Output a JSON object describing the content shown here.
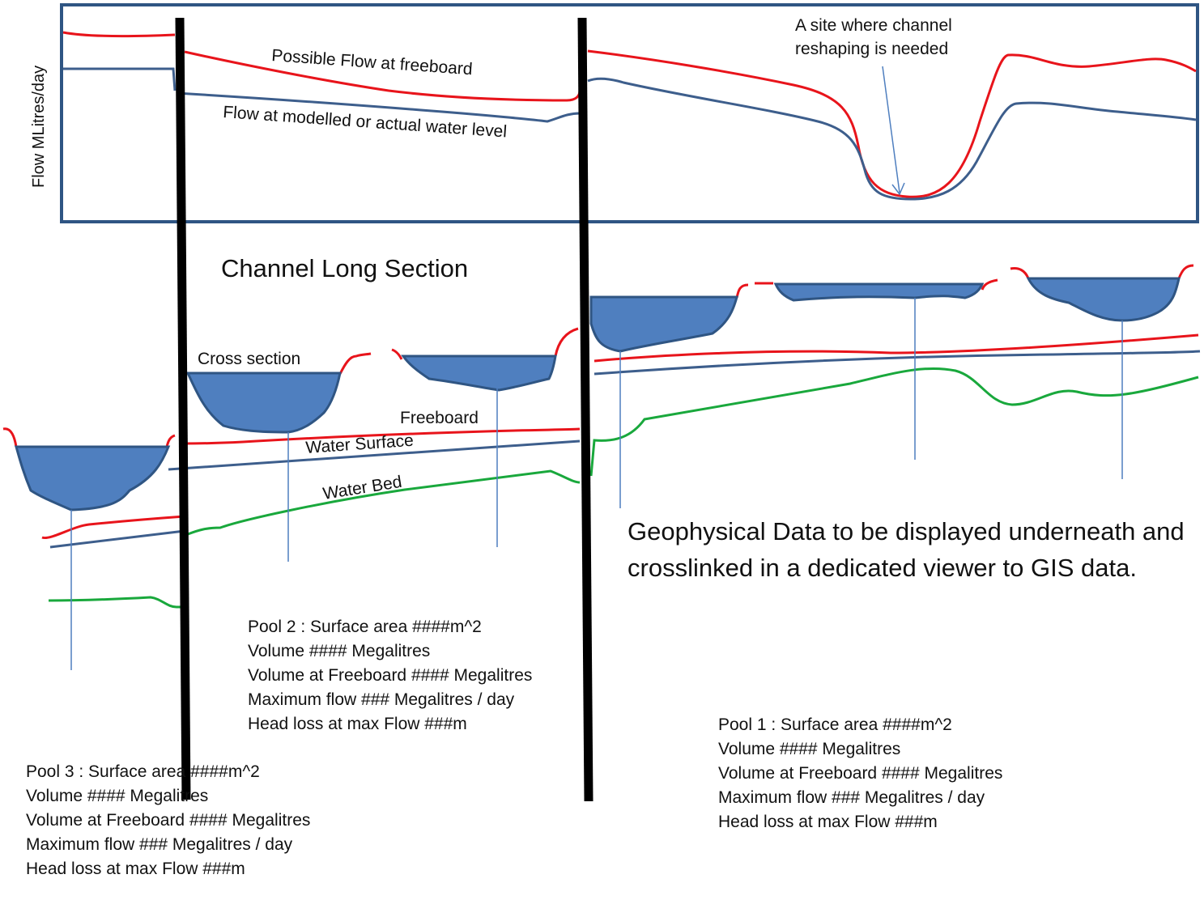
{
  "flow_panel": {
    "ylabel": "Flow MLitres/day",
    "possible_flow_label": "Possible Flow at freeboard",
    "modelled_flow_label": "Flow at modelled or actual water level",
    "reshaping_note_line1": "A site where channel",
    "reshaping_note_line2": "reshaping is needed"
  },
  "long_section": {
    "title": "Channel Long Section",
    "cross_section_label": "Cross section",
    "freeboard_label": "Freeboard",
    "water_surface_label": "Water Surface",
    "water_bed_label": "Water Bed"
  },
  "pools": [
    {
      "name_line": "Pool 1 : Surface area ####m^2",
      "volume": "Volume #### Megalitres",
      "volume_freeboard": "Volume at Freeboard #### Megalitres",
      "max_flow": "Maximum flow ### Megalitres / day",
      "head_loss": "Head loss at max Flow ###m"
    },
    {
      "name_line": "Pool 2 : Surface area ####m^2",
      "volume": "Volume #### Megalitres",
      "volume_freeboard": "Volume at Freeboard #### Megalitres",
      "max_flow": "Maximum flow ### Megalitres / day",
      "head_loss": "Head loss at max Flow ###m"
    },
    {
      "name_line": "Pool 3 : Surface area ####m^2",
      "volume": "Volume #### Megalitres",
      "volume_freeboard": "Volume at Freeboard #### Megalitres",
      "max_flow": "Maximum flow ### Megalitres / day",
      "head_loss": "Head loss at max Flow ###m"
    }
  ],
  "geophysical_note": "Geophysical Data to be displayed underneath and crosslinked in a dedicated viewer to GIS data.",
  "colors": {
    "freeboard_red": "#e8141b",
    "water_surface_blue": "#3d5e8c",
    "water_bed_green": "#19a83c",
    "pool_fill": "#4f7fbf",
    "pool_stroke": "#2f5583",
    "frame_blue": "#2f5583",
    "divider_black": "#000000"
  }
}
